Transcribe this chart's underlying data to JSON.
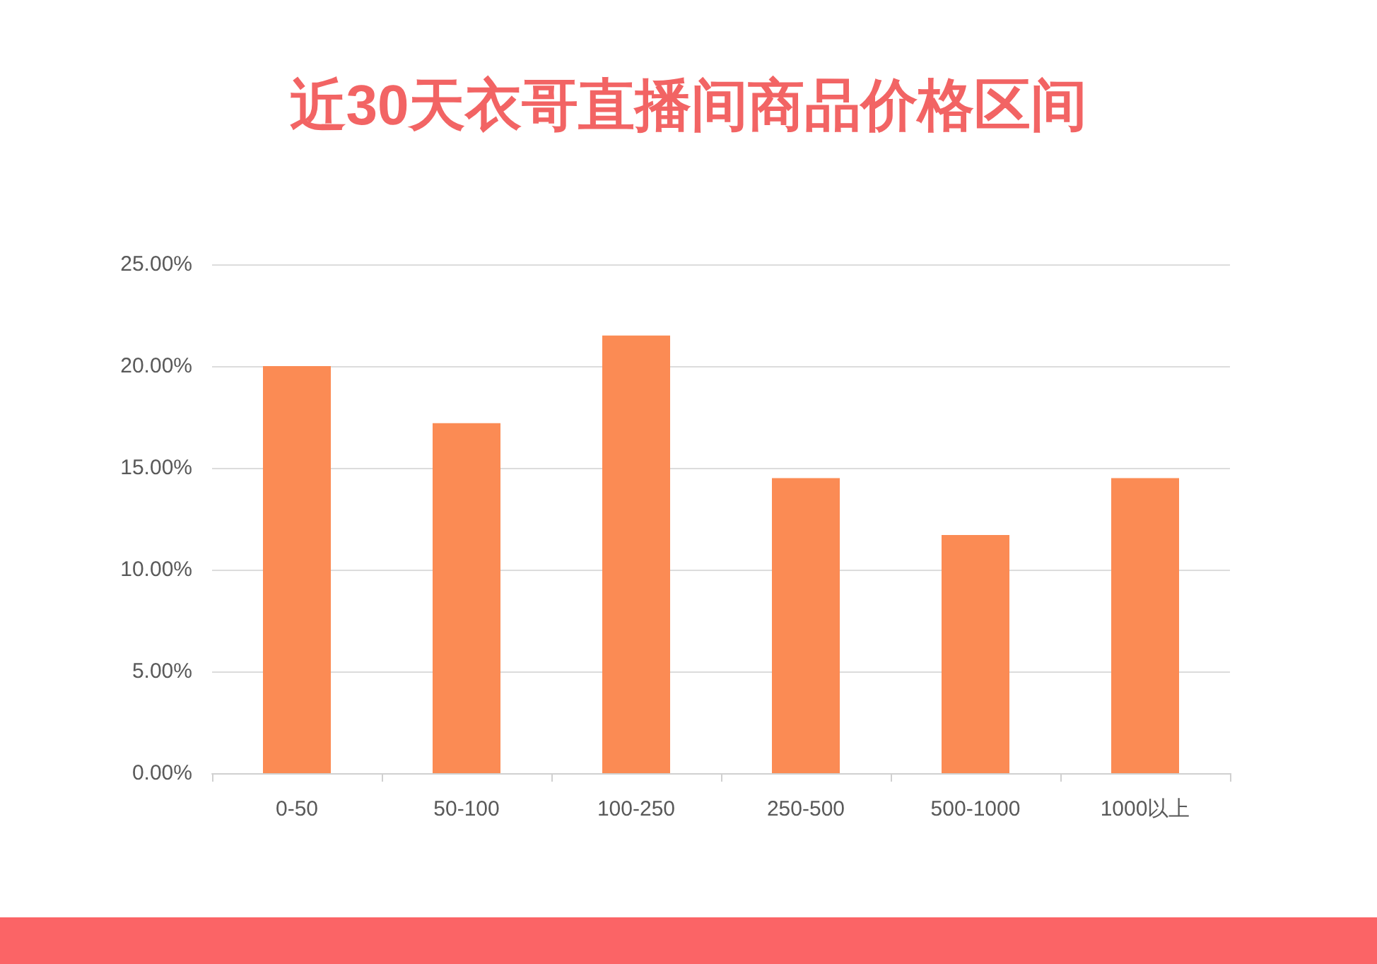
{
  "chart_data": {
    "type": "bar",
    "title": "近30天衣哥直播间商品价格区间",
    "categories": [
      "0-50",
      "50-100",
      "100-250",
      "250-500",
      "500-1000",
      "1000以上"
    ],
    "values": [
      20.0,
      17.2,
      21.5,
      14.5,
      11.7,
      14.5
    ],
    "color": "#fb8b54",
    "ylim": [
      0,
      25
    ],
    "yticks": [
      {
        "value": 0,
        "label": "0.00%"
      },
      {
        "value": 5,
        "label": "5.00%"
      },
      {
        "value": 10,
        "label": "10.00%"
      },
      {
        "value": 15,
        "label": "15.00%"
      },
      {
        "value": 20,
        "label": "20.00%"
      },
      {
        "value": 25,
        "label": "25.00%"
      }
    ],
    "grid": "y"
  }
}
